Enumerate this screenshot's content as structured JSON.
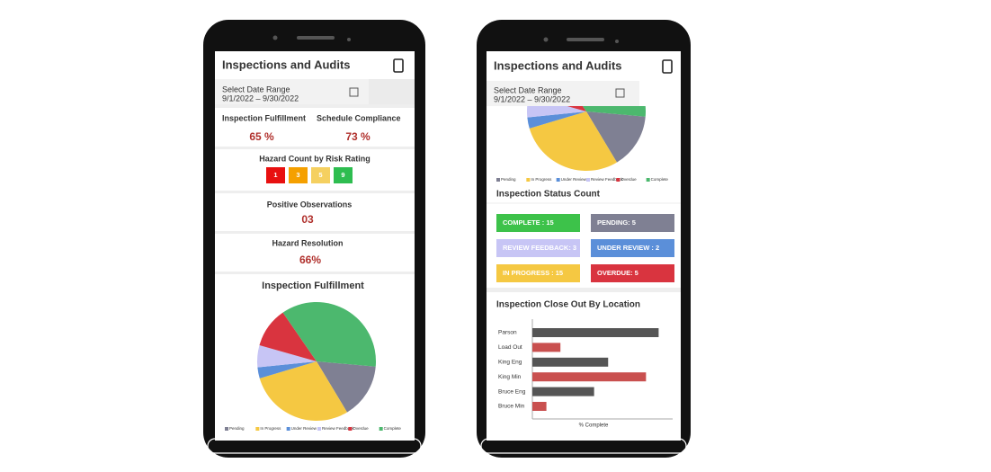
{
  "phones": [
    {
      "header": {
        "title": "Inspections and Audits"
      },
      "date_range": {
        "label": "Select Date Range",
        "value": "9/1/2022 – 9/30/2022"
      },
      "kpis": [
        {
          "label": "Inspection Fulfillment",
          "value": "65 %"
        },
        {
          "label": "Schedule Compliance",
          "value": "73 %"
        }
      ],
      "hazard": {
        "title": "Hazard Count by Risk Rating",
        "badges": [
          "1",
          "3",
          "5",
          "9"
        ]
      },
      "positive": {
        "title": "Positive Observations",
        "value": "03"
      },
      "resolution": {
        "title": "Hazard Resolution",
        "value": "66%"
      }
    },
    {
      "header": {
        "title": "Inspections and Audits"
      },
      "date_range": {
        "label": "Select Date Range",
        "value": "9/1/2022 – 9/30/2022"
      },
      "status": {
        "title": "Inspection Status Count",
        "tiles": [
          "COMPLETE : 15",
          "PENDING:  5",
          "REVIEW FEEDBACK: 3",
          "UNDER REVIEW : 2",
          "IN PROGRESS : 15",
          "OVERDUE: 5"
        ]
      }
    }
  ],
  "chart_data": [
    {
      "type": "pie",
      "title": "Inspection Fulfillment",
      "categories": [
        "Pending",
        "In Progress",
        "Under Review",
        "Review Feedback",
        "Overdue",
        "Complete"
      ],
      "values": [
        15,
        29,
        3,
        6,
        11,
        36
      ],
      "colors": [
        "#7f8093",
        "#f5c842",
        "#5b8fd9",
        "#c7c5f5",
        "#d9343f",
        "#4cb86e"
      ]
    },
    {
      "type": "bar",
      "title": "Inspection Close Out By Location",
      "categories": [
        "Parson",
        "Load Out",
        "King Eng",
        "King Min",
        "Bruce  Eng",
        "Bruce Min"
      ],
      "values": [
        90,
        20,
        54,
        81,
        44,
        10
      ],
      "colors": [
        "#555555",
        "#c9504f",
        "#555555",
        "#c9504f",
        "#555555",
        "#c9504f"
      ],
      "xlim": [
        0,
        100
      ],
      "xlabel": "% Complete"
    }
  ]
}
